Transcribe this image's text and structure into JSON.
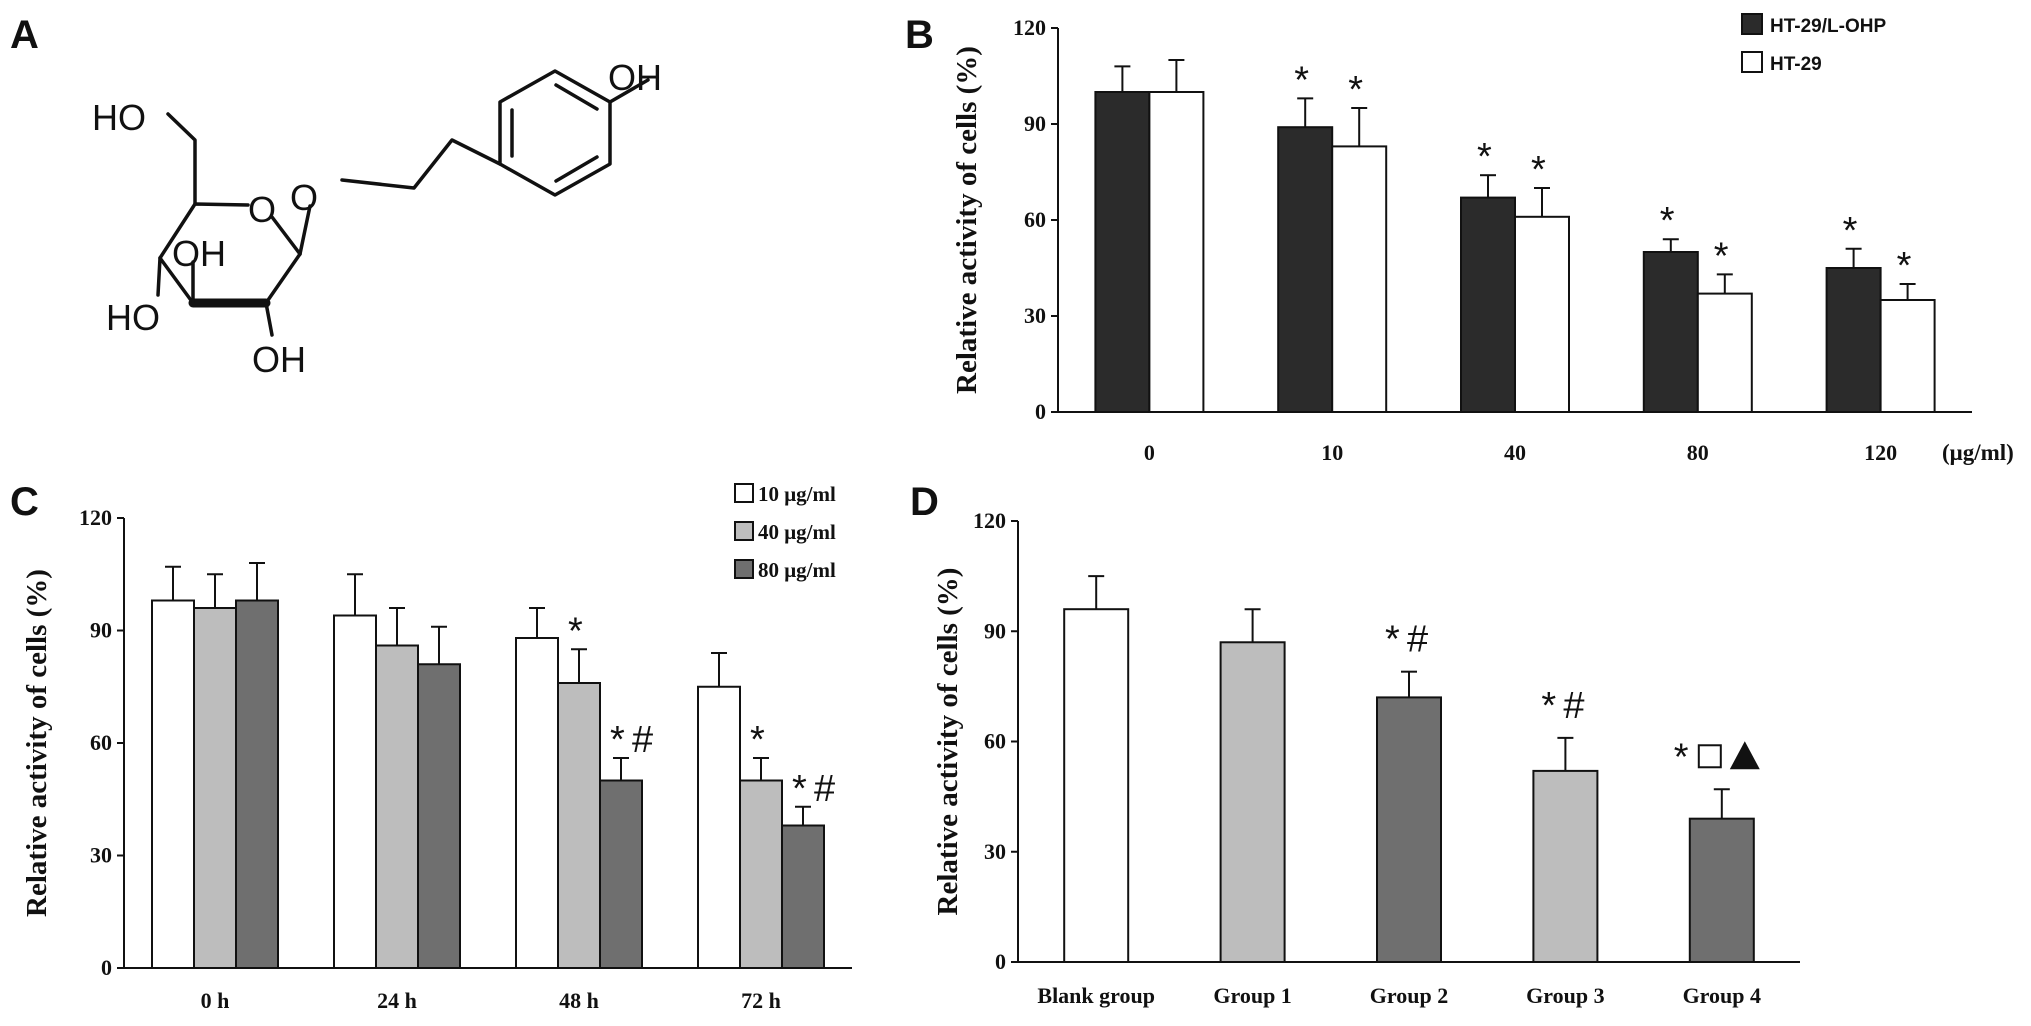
{
  "panels": {
    "a": {
      "letter": "A"
    },
    "b": {
      "letter": "B"
    },
    "c": {
      "letter": "C"
    },
    "d": {
      "letter": "D"
    }
  },
  "molecule": {
    "atoms": [
      "HO",
      "O",
      "O",
      "OH",
      "OH",
      "HO",
      "OH",
      "OH"
    ]
  },
  "colors": {
    "dark": "#2b2b2b",
    "light_gray": "#bdbdbd",
    "mid_gray": "#6f6f6f",
    "white": "#ffffff",
    "axis": "#111111"
  },
  "chart_data": [
    {
      "panel": "B",
      "type": "bar",
      "ylabel": "Relative activity of cells (%)",
      "ylim": [
        0,
        120
      ],
      "yticks": [
        0,
        30,
        60,
        90,
        120
      ],
      "categories": [
        "0",
        "10",
        "40",
        "80",
        "120"
      ],
      "x_unit": "(μg/ml)",
      "legend_position": "top-right",
      "series": [
        {
          "name": "HT-29/L-OHP",
          "color": "#2b2b2b",
          "values": [
            100,
            89,
            67,
            50,
            45
          ],
          "errors": [
            8,
            9,
            7,
            4,
            6
          ],
          "annotations": [
            "",
            "*",
            "*",
            "*",
            "*"
          ]
        },
        {
          "name": "HT-29",
          "color": "#ffffff",
          "values": [
            100,
            83,
            61,
            37,
            35
          ],
          "errors": [
            10,
            12,
            9,
            6,
            5
          ],
          "annotations": [
            "",
            "*",
            "*",
            "*",
            "*"
          ]
        }
      ]
    },
    {
      "panel": "C",
      "type": "bar",
      "ylabel": "Relative activity of cells (%)",
      "ylim": [
        0,
        120
      ],
      "yticks": [
        0,
        30,
        60,
        90,
        120
      ],
      "categories": [
        "0 h",
        "24 h",
        "48 h",
        "72 h"
      ],
      "legend_position": "top-right",
      "series": [
        {
          "name": "10 μg/ml",
          "color": "#ffffff",
          "values": [
            98,
            94,
            88,
            75
          ],
          "errors": [
            9,
            11,
            8,
            9
          ],
          "annotations": [
            "",
            "",
            "",
            ""
          ]
        },
        {
          "name": "40 μg/ml",
          "color": "#bdbdbd",
          "values": [
            96,
            86,
            76,
            50
          ],
          "errors": [
            9,
            10,
            9,
            6
          ],
          "annotations": [
            "",
            "",
            "*",
            "*"
          ]
        },
        {
          "name": "80 μg/ml",
          "color": "#6f6f6f",
          "values": [
            98,
            81,
            50,
            38
          ],
          "errors": [
            10,
            10,
            6,
            5
          ],
          "annotations": [
            "",
            "",
            "*#",
            "*#"
          ]
        }
      ]
    },
    {
      "panel": "D",
      "type": "bar",
      "ylabel": "Relative activity of cells (%)",
      "ylim": [
        0,
        120
      ],
      "yticks": [
        0,
        30,
        60,
        90,
        120
      ],
      "categories": [
        "Blank group",
        "Group 1",
        "Group 2",
        "Group 3",
        "Group 4"
      ],
      "values": [
        96,
        87,
        72,
        52,
        39
      ],
      "errors": [
        9,
        9,
        7,
        9,
        8
      ],
      "colors": [
        "#ffffff",
        "#bdbdbd",
        "#6f6f6f",
        "#bdbdbd",
        "#6f6f6f"
      ],
      "annotations": [
        "",
        "",
        "*#",
        "*#",
        "*□▲"
      ]
    }
  ]
}
